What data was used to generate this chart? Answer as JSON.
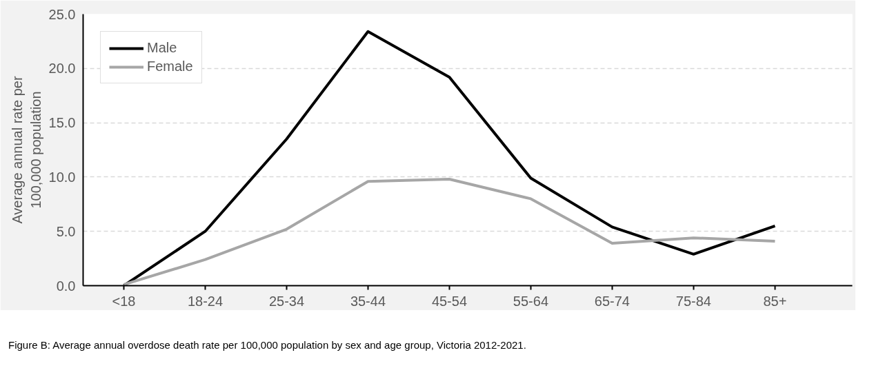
{
  "chart_data": {
    "type": "line",
    "ylabel": "Average annual rate per\n100,000 population",
    "categories": [
      "<18",
      "18-24",
      "25-34",
      "35-44",
      "45-54",
      "55-64",
      "65-74",
      "75-84",
      "85+"
    ],
    "series": [
      {
        "name": "Male",
        "color": "#000000",
        "values": [
          0.0,
          5.0,
          13.5,
          23.4,
          19.2,
          9.9,
          5.4,
          2.9,
          5.5
        ]
      },
      {
        "name": "Female",
        "color": "#a6a6a6",
        "values": [
          0.1,
          2.4,
          5.2,
          9.6,
          9.8,
          8.0,
          3.9,
          4.4,
          4.1
        ]
      }
    ],
    "ylim": [
      0,
      25
    ],
    "yticks": [
      {
        "value": 0,
        "label": "0.0"
      },
      {
        "value": 5,
        "label": "5.0"
      },
      {
        "value": 10,
        "label": "10.0"
      },
      {
        "value": 15,
        "label": "15.0"
      },
      {
        "value": 20,
        "label": "20.0"
      },
      {
        "value": 25,
        "label": "25.0"
      }
    ],
    "grid": "y",
    "legend": "top left",
    "marker": "none",
    "line_style": "solid",
    "annotations": [
      "Figure B: Average annual overdose death rate per 100,000 population by sex and age group, Victoria 2012-2021."
    ]
  }
}
